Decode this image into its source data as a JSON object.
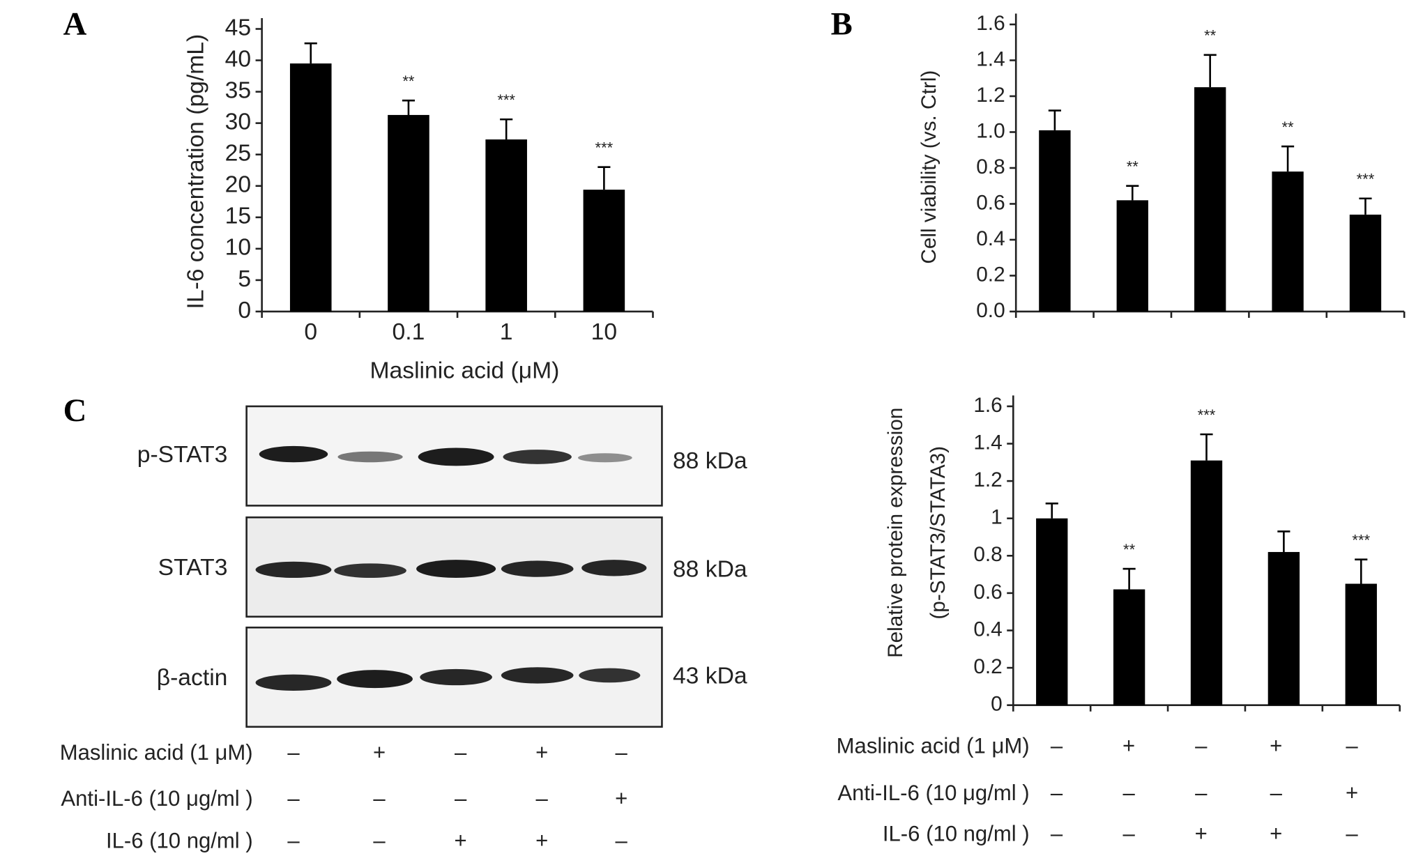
{
  "chart_data": [
    {
      "type": "bar",
      "panel": "A",
      "ylabel": [
        "IL-6 concentration (pg/mL)"
      ],
      "xlabel": "Maslinic acid (μM)",
      "categories": [
        "0",
        "0.1",
        "1",
        "10"
      ],
      "values": [
        39.5,
        31.3,
        27.4,
        19.4
      ],
      "errors": [
        3.2,
        2.3,
        3.2,
        3.6
      ],
      "annotations": [
        null,
        "**",
        "***",
        "***"
      ],
      "color": "#000000",
      "ylim": [
        0,
        45
      ],
      "yticks": [
        0,
        5,
        10,
        15,
        20,
        25,
        30,
        35,
        40,
        45
      ]
    },
    {
      "type": "bar",
      "panel": "B",
      "ylabel": [
        "Cell viability (vs. Ctrl)"
      ],
      "categories": [
        null,
        null,
        null,
        null,
        null
      ],
      "values": [
        1.01,
        0.62,
        1.25,
        0.78,
        0.54
      ],
      "errors": [
        0.11,
        0.08,
        0.18,
        0.14,
        0.09
      ],
      "annotations": [
        null,
        "**",
        "**",
        "**",
        "***"
      ],
      "color": "#000000",
      "ylim": [
        0,
        1.6
      ],
      "yticks": [
        {
          "value": 0,
          "label": "0.0"
        },
        0.2,
        0.4,
        0.6,
        0.8,
        {
          "value": 1,
          "label": "1.0"
        },
        1.2,
        1.4,
        1.6
      ]
    },
    {
      "type": "bar",
      "ylabel": [
        "Relative protein expression",
        "(p-STAT3/STATA3)"
      ],
      "categories": [
        null,
        null,
        null,
        null,
        null
      ],
      "values": [
        1.0,
        0.62,
        1.31,
        0.82,
        0.65
      ],
      "errors": [
        0.08,
        0.11,
        0.14,
        0.11,
        0.13
      ],
      "annotations": [
        null,
        "**",
        "***",
        null,
        "***"
      ],
      "color": "#000000",
      "ylim": [
        0,
        1.6
      ],
      "yticks": [
        0,
        0.2,
        0.4,
        0.6,
        0.8,
        1,
        1.2,
        1.4,
        1.6
      ]
    }
  ],
  "blot": {
    "panel": "C",
    "rows": [
      {
        "label": "p-STAT3",
        "size": "88 kDa"
      },
      {
        "label": "STAT3",
        "size": "88 kDa"
      },
      {
        "label": "β-actin",
        "size": "43 kDa"
      }
    ]
  },
  "treatments": [
    {
      "label": "Maslinic acid (1 μM)",
      "signs": [
        "–",
        "+",
        "–",
        "+",
        "–"
      ]
    },
    {
      "label": "Anti-IL-6 (10 μg/ml )",
      "signs": [
        "–",
        "–",
        "–",
        "–",
        "+"
      ]
    },
    {
      "label": "IL-6 (10 ng/ml )",
      "signs": [
        "–",
        "–",
        "+",
        "+",
        "–"
      ]
    }
  ]
}
